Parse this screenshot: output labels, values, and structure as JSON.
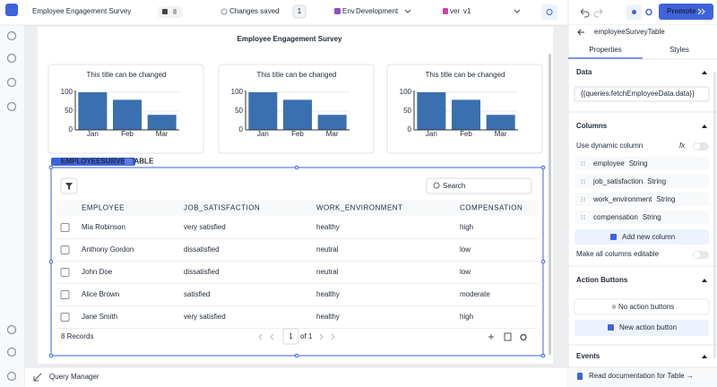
{
  "topbar": {
    "app_name": "Employee Engagement Survey",
    "save_status": "Changes saved",
    "version_count": "1",
    "env_label": "Env",
    "env": "Development",
    "ver_label": "ver",
    "version": "v1",
    "promote": "Promote"
  },
  "canvas": {
    "title": "Employee Engagement Survey",
    "charts": [
      {
        "type": "bar",
        "title": "This title can be changed",
        "categories": [
          "Jan",
          "Feb",
          "Mar"
        ],
        "values": [
          100,
          80,
          40
        ],
        "color": "#3a70b0",
        "ylim": [
          0,
          100
        ],
        "yticks": [
          0,
          50,
          100
        ]
      },
      {
        "type": "bar",
        "title": "This title can be changed",
        "categories": [
          "Jan",
          "Feb",
          "Mar"
        ],
        "values": [
          100,
          80,
          40
        ],
        "color": "#3a70b0",
        "ylim": [
          0,
          100
        ],
        "yticks": [
          0,
          50,
          100
        ]
      },
      {
        "type": "bar",
        "title": "This title can be changed",
        "categories": [
          "Jan",
          "Feb",
          "Mar"
        ],
        "values": [
          100,
          80,
          40
        ],
        "color": "#3a70b0",
        "ylim": [
          0,
          100
        ],
        "yticks": [
          0,
          50,
          100
        ]
      }
    ],
    "table": {
      "widget_label": "EMPLOYEESURVEYTABLE",
      "search_placeholder": "Search",
      "columns": [
        "EMPLOYEE",
        "JOB_SATISFACTION",
        "WORK_ENVIRONMENT",
        "COMPENSATION"
      ],
      "rows": [
        [
          "Mia Robinson",
          "very satisfied",
          "healthy",
          "high"
        ],
        [
          "Anthony Gordon",
          "dissatisfied",
          "neutral",
          "low"
        ],
        [
          "John Doe",
          "dissatisfied",
          "neutral",
          "low"
        ],
        [
          "Alice Brown",
          "satisfied",
          "healthy",
          "moderate"
        ],
        [
          "Jane Smith",
          "very satisfied",
          "healthy",
          "high"
        ]
      ],
      "records": "8 Records",
      "page": "1",
      "page_of": "of 1"
    }
  },
  "bottom": {
    "query_manager": "Query Manager"
  },
  "inspector": {
    "component": "employeeSurveyTable",
    "tabs": [
      "Properties",
      "Styles"
    ],
    "data_section": "Data",
    "data_value": "{{queries.fetchEmployeeData.data}}",
    "columns_section": "Columns",
    "dynamic_column": "Use dynamic column",
    "fx": "fx",
    "columns": [
      {
        "name": "employee",
        "type": "String"
      },
      {
        "name": "job_satisfaction",
        "type": "String"
      },
      {
        "name": "work_environment",
        "type": "String"
      },
      {
        "name": "compensation",
        "type": "String"
      }
    ],
    "add_column": "Add new column",
    "editable": "Make all columns editable",
    "action_section": "Action Buttons",
    "no_actions": "No action buttons",
    "new_action": "New action button",
    "events_section": "Events",
    "docs": "Read documentation for Table →"
  }
}
